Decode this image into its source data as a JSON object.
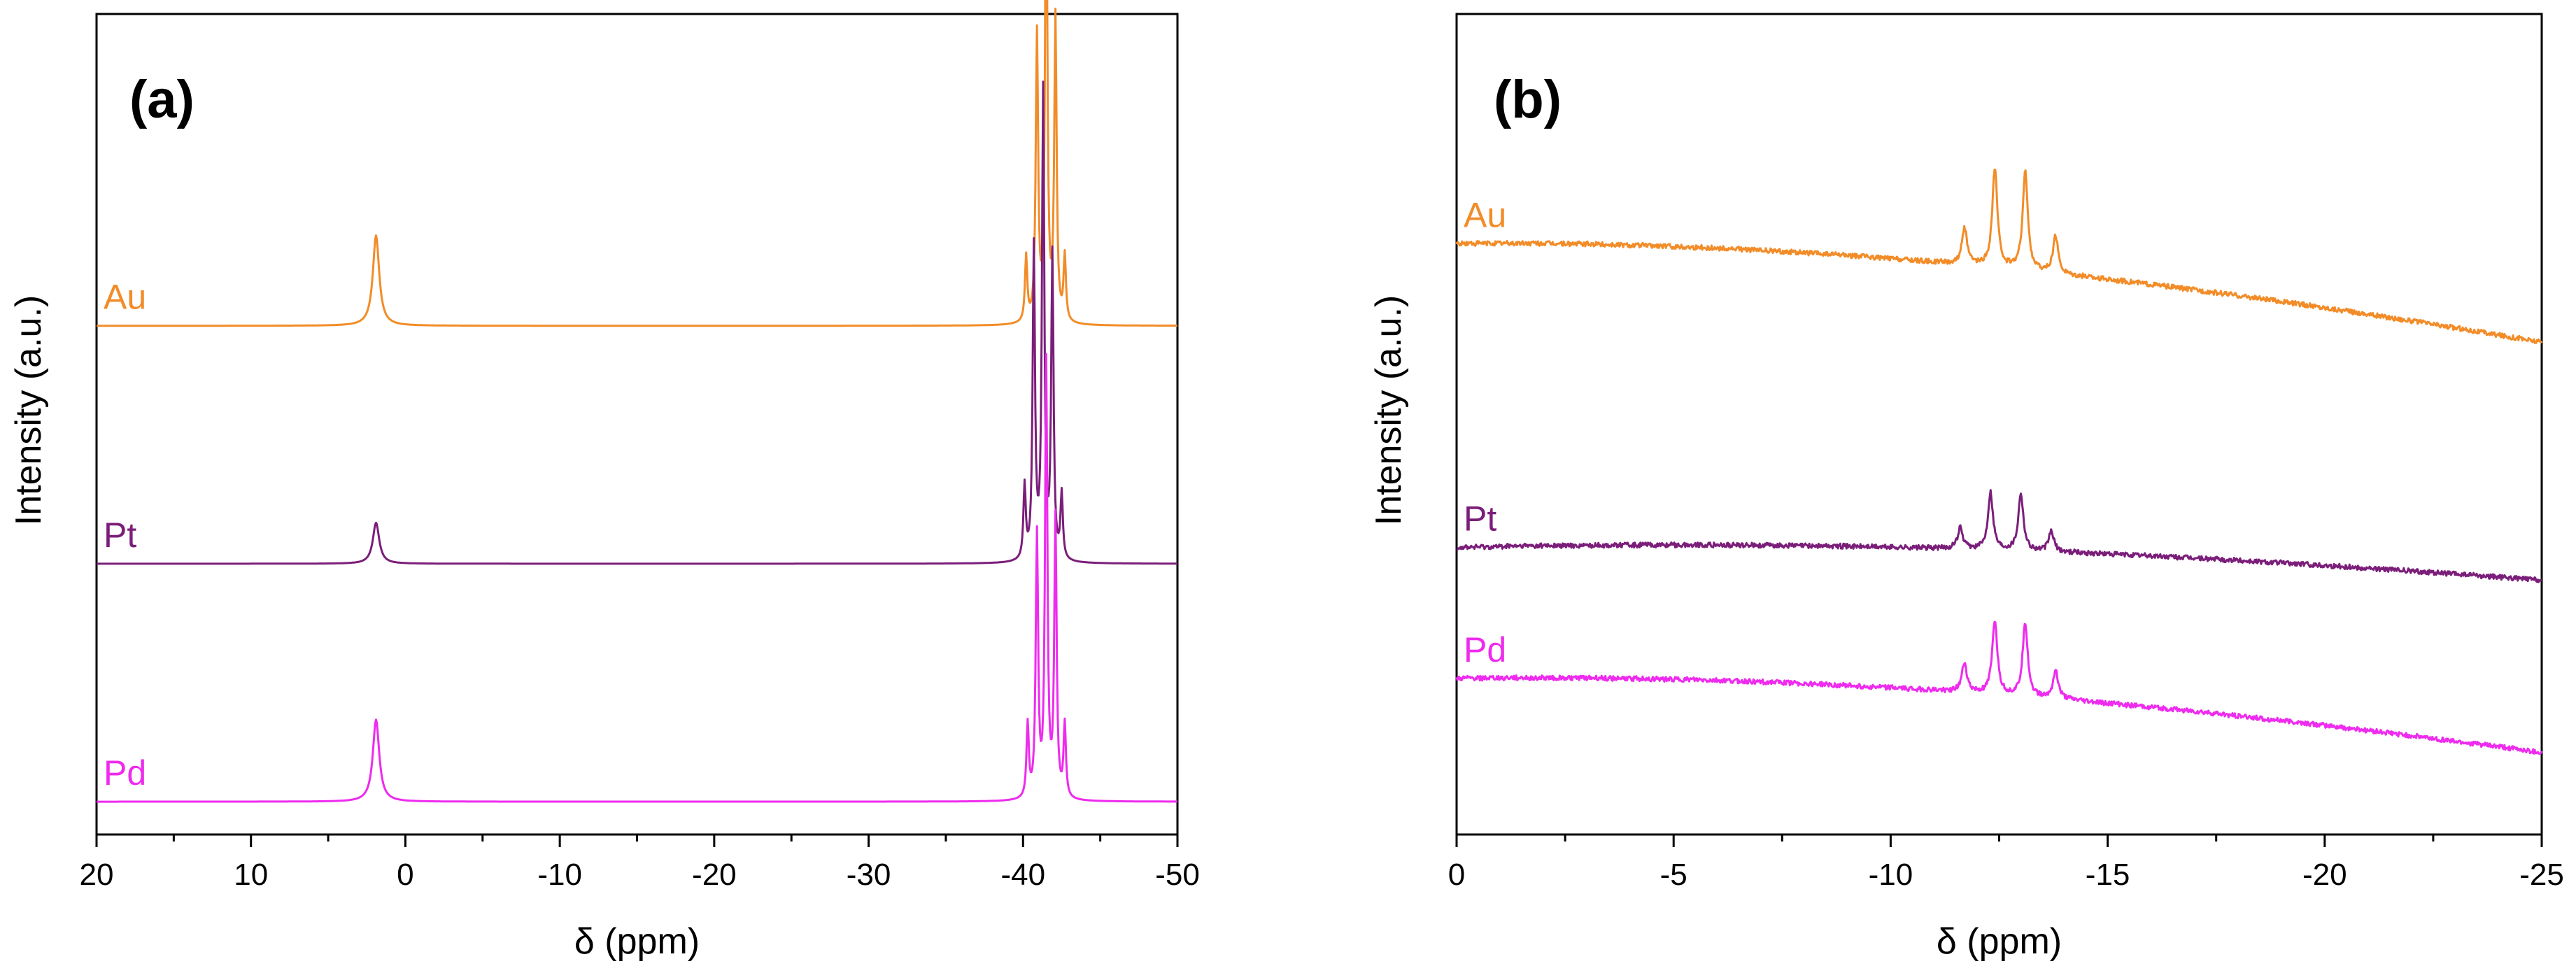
{
  "chart_data": [
    {
      "type": "line",
      "panel_label": "(a)",
      "xlabel": "δ (ppm)",
      "ylabel": "Intensity (a.u.)",
      "xlim": [
        20,
        -50
      ],
      "xticks": [
        20,
        10,
        0,
        -10,
        -20,
        -30,
        -40,
        -50
      ],
      "xtick_labels": [
        "20",
        "10",
        "0",
        "-10",
        "-20",
        "-30",
        "-40",
        "-50"
      ],
      "y_ticks_shown": false,
      "series": [
        {
          "name": "Au",
          "color": "#F28C28",
          "baseline": 0.62,
          "baseline_slope": 0,
          "peaks": [
            {
              "pos": 1.9,
              "height": 0.11,
              "width": 0.25
            },
            {
              "pos": -40.2,
              "height": 0.08,
              "width": 0.09
            },
            {
              "pos": -40.9,
              "height": 0.35,
              "width": 0.09
            },
            {
              "pos": -41.5,
              "height": 0.57,
              "width": 0.09
            },
            {
              "pos": -42.1,
              "height": 0.37,
              "width": 0.09
            },
            {
              "pos": -42.7,
              "height": 0.08,
              "width": 0.09
            }
          ]
        },
        {
          "name": "Pt",
          "color": "#7B1E7A",
          "baseline": 0.33,
          "baseline_slope": 0,
          "peaks": [
            {
              "pos": 1.9,
              "height": 0.05,
              "width": 0.25
            },
            {
              "pos": -40.1,
              "height": 0.09,
              "width": 0.09
            },
            {
              "pos": -40.7,
              "height": 0.38,
              "width": 0.09
            },
            {
              "pos": -41.3,
              "height": 0.57,
              "width": 0.09
            },
            {
              "pos": -41.9,
              "height": 0.37,
              "width": 0.09
            },
            {
              "pos": -42.5,
              "height": 0.08,
              "width": 0.09
            }
          ]
        },
        {
          "name": "Pd",
          "color": "#EE2BEE",
          "baseline": 0.04,
          "baseline_slope": 0,
          "peaks": [
            {
              "pos": 1.9,
              "height": 0.1,
              "width": 0.25
            },
            {
              "pos": -40.3,
              "height": 0.09,
              "width": 0.09
            },
            {
              "pos": -40.9,
              "height": 0.32,
              "width": 0.09
            },
            {
              "pos": -41.5,
              "height": 0.53,
              "width": 0.09
            },
            {
              "pos": -42.1,
              "height": 0.34,
              "width": 0.09
            },
            {
              "pos": -42.7,
              "height": 0.09,
              "width": 0.09
            }
          ]
        }
      ]
    },
    {
      "type": "line",
      "panel_label": "(b)",
      "xlabel": "δ (ppm)",
      "ylabel": "Intensity (a.u.)",
      "xlim": [
        0,
        -25
      ],
      "xticks": [
        0,
        -5,
        -10,
        -15,
        -20,
        -25
      ],
      "xtick_labels": [
        "0",
        "-5",
        "-10",
        "-15",
        "-20",
        "-25"
      ],
      "y_ticks_shown": false,
      "series": [
        {
          "name": "Au",
          "color": "#F28C28",
          "baseline": 0.72,
          "baseline_drop": 0.12,
          "peaks": [
            {
              "pos": -11.7,
              "height": 0.045,
              "width": 0.07
            },
            {
              "pos": -12.4,
              "height": 0.12,
              "width": 0.07
            },
            {
              "pos": -13.1,
              "height": 0.12,
              "width": 0.07
            },
            {
              "pos": -13.8,
              "height": 0.045,
              "width": 0.07
            }
          ]
        },
        {
          "name": "Pt",
          "color": "#7B1E7A",
          "baseline": 0.35,
          "baseline_drop": 0.04,
          "peaks": [
            {
              "pos": -11.6,
              "height": 0.025,
              "width": 0.07
            },
            {
              "pos": -12.3,
              "height": 0.07,
              "width": 0.07
            },
            {
              "pos": -13.0,
              "height": 0.07,
              "width": 0.07
            },
            {
              "pos": -13.7,
              "height": 0.025,
              "width": 0.07
            }
          ]
        },
        {
          "name": "Pd",
          "color": "#EE2BEE",
          "baseline": 0.19,
          "baseline_drop": 0.09,
          "peaks": [
            {
              "pos": -11.7,
              "height": 0.035,
              "width": 0.07
            },
            {
              "pos": -12.4,
              "height": 0.09,
              "width": 0.07
            },
            {
              "pos": -13.1,
              "height": 0.09,
              "width": 0.07
            },
            {
              "pos": -13.8,
              "height": 0.035,
              "width": 0.07
            }
          ]
        }
      ]
    }
  ]
}
